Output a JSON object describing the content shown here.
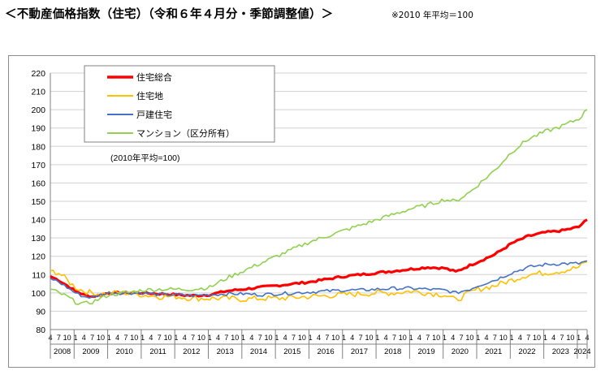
{
  "header": {
    "title": "＜不動産価格指数（住宅）（令和６年４月分・季節調整値）＞",
    "note": "※2010 年平均＝100"
  },
  "chart_data": {
    "type": "line",
    "note": "(2010年平均=100)",
    "ylim": [
      80,
      220
    ],
    "ystep": 10,
    "grid": true,
    "legend_placement": "top-left",
    "x_start": "2008-04",
    "x_end": "2024-04",
    "month_tick_labels": [
      "4",
      "7",
      "10",
      "1"
    ],
    "year_labels": [
      "2008",
      "2009",
      "2010",
      "2011",
      "2012",
      "2013",
      "2014",
      "2015",
      "2016",
      "2017",
      "2018",
      "2019",
      "2020",
      "2021",
      "2022",
      "2023",
      "2024"
    ],
    "series": [
      {
        "name": "住宅総合",
        "color": "#ff0000",
        "anchors": [
          [
            "2008-04",
            109
          ],
          [
            "2008-07",
            107
          ],
          [
            "2008-10",
            104
          ],
          [
            "2009-01",
            101
          ],
          [
            "2009-04",
            99
          ],
          [
            "2009-07",
            98
          ],
          [
            "2009-10",
            99
          ],
          [
            "2010-01",
            100
          ],
          [
            "2010-07",
            100
          ],
          [
            "2011-01",
            100
          ],
          [
            "2011-07",
            99.5
          ],
          [
            "2012-01",
            99
          ],
          [
            "2012-07",
            98.5
          ],
          [
            "2013-01",
            99
          ],
          [
            "2013-07",
            101
          ],
          [
            "2014-01",
            102
          ],
          [
            "2014-07",
            103
          ],
          [
            "2015-01",
            104
          ],
          [
            "2015-07",
            105
          ],
          [
            "2016-01",
            106
          ],
          [
            "2016-07",
            107.5
          ],
          [
            "2017-01",
            109
          ],
          [
            "2017-07",
            110
          ],
          [
            "2018-01",
            111
          ],
          [
            "2018-07",
            112
          ],
          [
            "2019-01",
            113
          ],
          [
            "2019-07",
            114
          ],
          [
            "2020-01",
            113.5
          ],
          [
            "2020-05",
            111.5
          ],
          [
            "2020-10",
            115
          ],
          [
            "2021-01",
            117
          ],
          [
            "2021-07",
            121
          ],
          [
            "2022-01",
            127
          ],
          [
            "2022-07",
            131
          ],
          [
            "2023-01",
            133
          ],
          [
            "2023-07",
            134
          ],
          [
            "2024-01",
            136
          ],
          [
            "2024-04",
            140
          ]
        ],
        "noise": 0.6
      },
      {
        "name": "住宅地",
        "color": "#ffc000",
        "anchors": [
          [
            "2008-04",
            112
          ],
          [
            "2008-07",
            111
          ],
          [
            "2008-10",
            107
          ],
          [
            "2009-01",
            103
          ],
          [
            "2009-04",
            101
          ],
          [
            "2009-07",
            100
          ],
          [
            "2009-10",
            99.5
          ],
          [
            "2010-01",
            100
          ],
          [
            "2010-07",
            100
          ],
          [
            "2011-01",
            99
          ],
          [
            "2011-07",
            98
          ],
          [
            "2012-01",
            98
          ],
          [
            "2012-07",
            97
          ],
          [
            "2013-01",
            97
          ],
          [
            "2013-07",
            97
          ],
          [
            "2014-01",
            96.5
          ],
          [
            "2014-07",
            97
          ],
          [
            "2015-01",
            97
          ],
          [
            "2015-07",
            97.5
          ],
          [
            "2016-01",
            98
          ],
          [
            "2016-07",
            98.5
          ],
          [
            "2017-01",
            99
          ],
          [
            "2017-07",
            99.5
          ],
          [
            "2018-01",
            100
          ],
          [
            "2018-07",
            100
          ],
          [
            "2019-01",
            101
          ],
          [
            "2019-07",
            100
          ],
          [
            "2020-01",
            99
          ],
          [
            "2020-05",
            96
          ],
          [
            "2020-10",
            100
          ],
          [
            "2021-01",
            102
          ],
          [
            "2021-07",
            104
          ],
          [
            "2022-01",
            107
          ],
          [
            "2022-07",
            110
          ],
          [
            "2023-01",
            111
          ],
          [
            "2023-07",
            112
          ],
          [
            "2024-01",
            114
          ],
          [
            "2024-04",
            117
          ]
        ],
        "noise": 1.6
      },
      {
        "name": "戸建住宅",
        "color": "#4472c4",
        "anchors": [
          [
            "2008-04",
            108
          ],
          [
            "2008-07",
            106
          ],
          [
            "2008-10",
            103
          ],
          [
            "2009-01",
            100
          ],
          [
            "2009-04",
            98
          ],
          [
            "2009-07",
            97.5
          ],
          [
            "2009-10",
            99
          ],
          [
            "2010-01",
            100
          ],
          [
            "2010-07",
            100
          ],
          [
            "2011-01",
            100
          ],
          [
            "2011-07",
            99
          ],
          [
            "2012-01",
            99
          ],
          [
            "2012-07",
            98.5
          ],
          [
            "2013-01",
            99
          ],
          [
            "2013-07",
            99.5
          ],
          [
            "2014-01",
            99.5
          ],
          [
            "2014-07",
            99
          ],
          [
            "2015-01",
            99.5
          ],
          [
            "2015-07",
            100
          ],
          [
            "2016-01",
            100.5
          ],
          [
            "2016-07",
            101
          ],
          [
            "2017-01",
            101.5
          ],
          [
            "2017-07",
            101.5
          ],
          [
            "2018-01",
            102
          ],
          [
            "2018-07",
            102.5
          ],
          [
            "2019-01",
            102.5
          ],
          [
            "2019-07",
            102
          ],
          [
            "2020-01",
            101.5
          ],
          [
            "2020-05",
            100
          ],
          [
            "2020-10",
            102
          ],
          [
            "2021-01",
            104
          ],
          [
            "2021-07",
            107
          ],
          [
            "2022-01",
            111
          ],
          [
            "2022-07",
            114
          ],
          [
            "2023-01",
            115.5
          ],
          [
            "2023-07",
            116
          ],
          [
            "2024-01",
            116
          ],
          [
            "2024-04",
            117.5
          ]
        ],
        "noise": 0.9
      },
      {
        "name": "マンション（区分所有）",
        "color": "#92d050",
        "anchors": [
          [
            "2008-04",
            102
          ],
          [
            "2008-07",
            100
          ],
          [
            "2008-10",
            98
          ],
          [
            "2009-01",
            95
          ],
          [
            "2009-04",
            94
          ],
          [
            "2009-07",
            95
          ],
          [
            "2009-10",
            97
          ],
          [
            "2010-01",
            99
          ],
          [
            "2010-07",
            100
          ],
          [
            "2011-01",
            101.5
          ],
          [
            "2011-07",
            102
          ],
          [
            "2012-01",
            102
          ],
          [
            "2012-07",
            102
          ],
          [
            "2013-01",
            103
          ],
          [
            "2013-07",
            108
          ],
          [
            "2014-01",
            112
          ],
          [
            "2014-07",
            116
          ],
          [
            "2015-01",
            120
          ],
          [
            "2015-07",
            124
          ],
          [
            "2016-01",
            128
          ],
          [
            "2016-07",
            131
          ],
          [
            "2017-01",
            134
          ],
          [
            "2017-07",
            137
          ],
          [
            "2018-01",
            140
          ],
          [
            "2018-07",
            143
          ],
          [
            "2019-01",
            146
          ],
          [
            "2019-07",
            148
          ],
          [
            "2020-01",
            151
          ],
          [
            "2020-05",
            150
          ],
          [
            "2020-10",
            155
          ],
          [
            "2021-01",
            159
          ],
          [
            "2021-07",
            167
          ],
          [
            "2022-01",
            177
          ],
          [
            "2022-07",
            184
          ],
          [
            "2023-01",
            188
          ],
          [
            "2023-07",
            191
          ],
          [
            "2024-01",
            195
          ],
          [
            "2024-04",
            200
          ]
        ],
        "noise": 1.1
      }
    ]
  }
}
